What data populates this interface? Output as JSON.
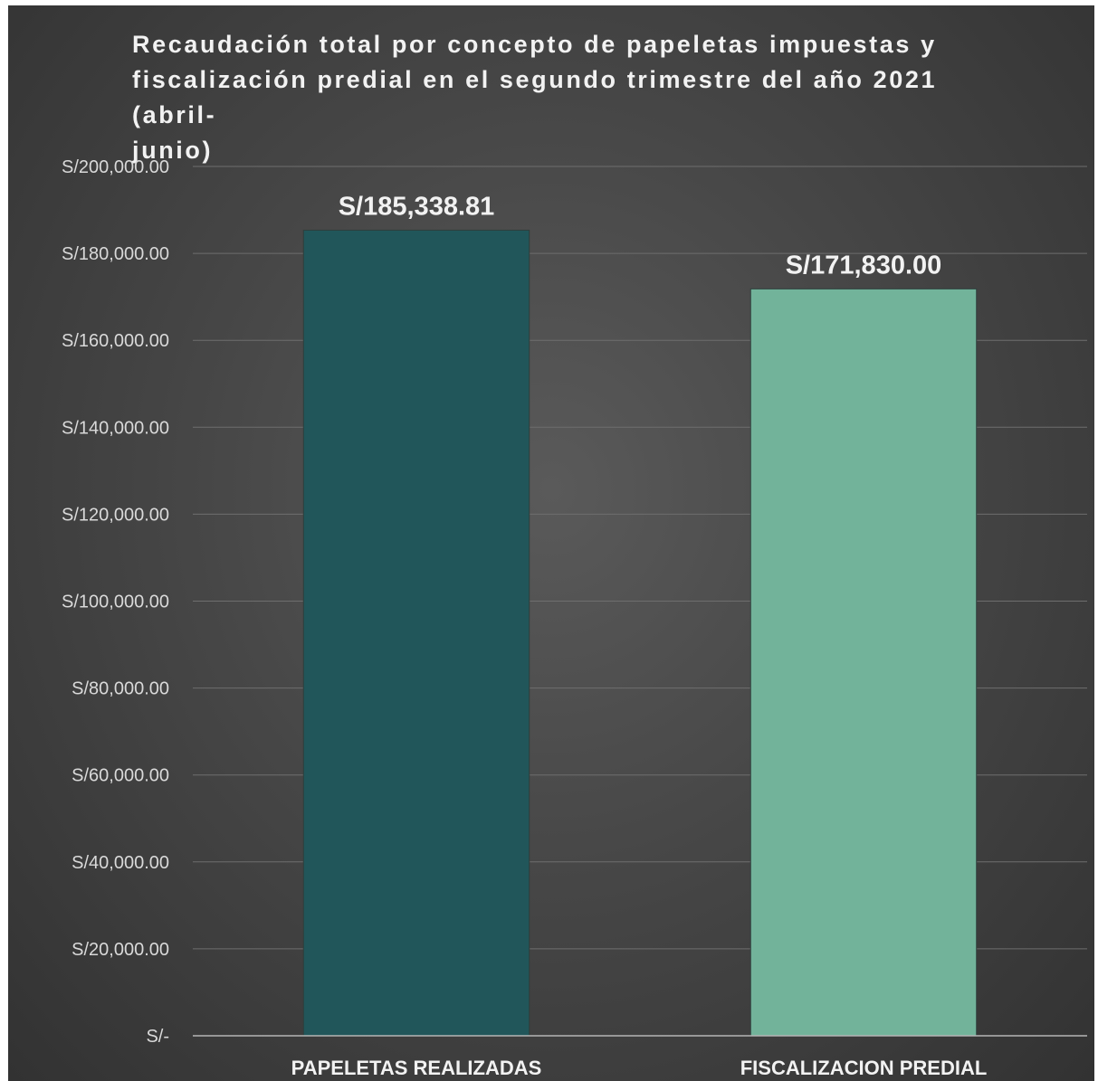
{
  "chart_data": {
    "type": "bar",
    "title": "Recaudación total por concepto de papeletas impuestas y fiscalización predial en el segundo trimestre del año 2021 (abril-junio)",
    "title_lines": [
      "Recaudación total por concepto de papeletas impuestas y",
      "fiscalización predial en el segundo trimestre del año 2021 (abril-",
      "junio)"
    ],
    "categories": [
      "PAPELETAS REALIZADAS",
      "FISCALIZACION PREDIAL"
    ],
    "values": [
      185338.81,
      171830.0
    ],
    "data_labels": [
      "S/185,338.81",
      "S/171,830.00"
    ],
    "colors": [
      "#21565a",
      "#72b39a"
    ],
    "ylim": [
      0,
      200000
    ],
    "yticks": [
      0,
      20000,
      40000,
      60000,
      80000,
      100000,
      120000,
      140000,
      160000,
      180000,
      200000
    ],
    "ytick_labels": [
      "S/-",
      "S/20,000.00",
      "S/40,000.00",
      "S/60,000.00",
      "S/80,000.00",
      "S/100,000.00",
      "S/120,000.00",
      "S/140,000.00",
      "S/160,000.00",
      "S/180,000.00",
      "S/200,000.00"
    ],
    "grid": true,
    "legend": "none",
    "background": "#454545"
  }
}
